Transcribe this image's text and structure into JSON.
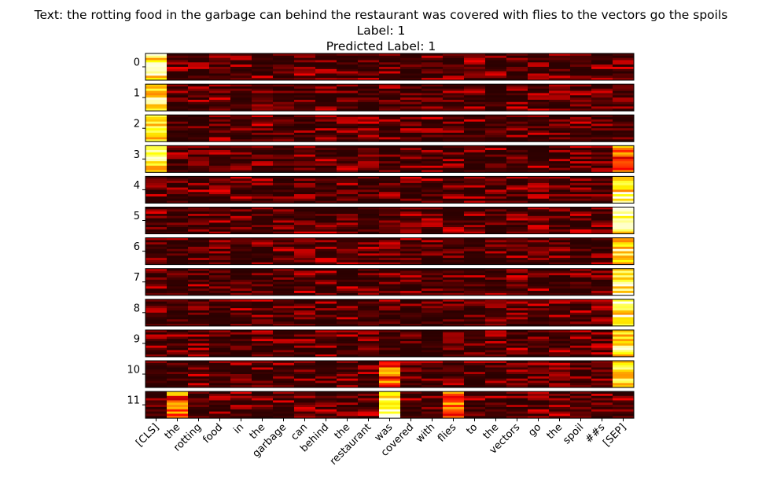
{
  "title_lines": [
    "Text: the rotting food in the garbage can behind the restaurant was covered with flies to the vectors go the spoils",
    "Label: 1",
    "Predicted Label: 1"
  ],
  "chart_data": {
    "type": "heatmap",
    "colormap": "hot",
    "title": "Text: the rotting food in the garbage can behind the restaurant was covered with flies to the vectors go the spoils\nLabel: 1\nPredicted Label: 1",
    "xlabel": "",
    "ylabel": "",
    "layers": [
      "0",
      "1",
      "2",
      "3",
      "4",
      "5",
      "6",
      "7",
      "8",
      "9",
      "10",
      "11"
    ],
    "tokens": [
      "[CLS]",
      "the",
      "rotting",
      "food",
      "in",
      "the",
      "garbage",
      "can",
      "behind",
      "the",
      "restaurant",
      "was",
      "covered",
      "with",
      "flies",
      "to",
      "the",
      "vectors",
      "go",
      "the",
      "spoil",
      "##s",
      "[SEP]"
    ],
    "heads_per_layer": 12,
    "dominant_columns": {
      "0": [
        0
      ],
      "1": [
        0
      ],
      "2": [
        0
      ],
      "3": [
        0,
        22
      ],
      "4": [
        22
      ],
      "5": [
        22
      ],
      "6": [
        22
      ],
      "7": [
        22
      ],
      "8": [
        22
      ],
      "9": [
        22
      ],
      "10": [
        22,
        11
      ],
      "11": [
        11,
        14,
        1
      ]
    },
    "grid": false
  }
}
